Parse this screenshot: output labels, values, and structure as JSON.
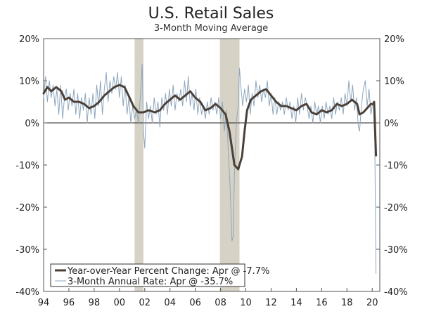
{
  "chart_data": {
    "type": "line",
    "title": "U.S. Retail Sales",
    "subtitle": "3-Month Moving Average",
    "x_range": [
      1994,
      2020.6
    ],
    "ylim": [
      -40,
      20
    ],
    "y_ticks": [
      20,
      10,
      0,
      -10,
      -20,
      -30,
      -40
    ],
    "y_tick_labels_left": [
      "20%",
      "10%",
      "0%",
      "-10%",
      "-20%",
      "-30%",
      "-40%"
    ],
    "y_tick_labels_right": [
      "20%",
      "10%",
      "0%",
      "-10%",
      "-20%",
      "-30%",
      "-40%"
    ],
    "x_ticks": [
      1994,
      1996,
      1998,
      2000,
      2002,
      2004,
      2006,
      2008,
      2010,
      2012,
      2014,
      2016,
      2018,
      2020
    ],
    "x_tick_labels": [
      "94",
      "96",
      "98",
      "00",
      "02",
      "04",
      "06",
      "08",
      "10",
      "12",
      "14",
      "16",
      "18",
      "20"
    ],
    "recessions": [
      {
        "start": 2001.2,
        "end": 2001.9
      },
      {
        "start": 2007.95,
        "end": 2009.5
      }
    ],
    "series": [
      {
        "name": "Year-over-Year Percent Change: Apr @ -7.7%",
        "color": "#4a4038",
        "style": "thick",
        "points": [
          [
            1994.0,
            7.0
          ],
          [
            1994.3,
            8.5
          ],
          [
            1994.6,
            7.5
          ],
          [
            1995.0,
            8.5
          ],
          [
            1995.4,
            7.5
          ],
          [
            1995.7,
            5.5
          ],
          [
            1996.0,
            6.0
          ],
          [
            1996.4,
            5.0
          ],
          [
            1996.8,
            5.0
          ],
          [
            1997.2,
            4.5
          ],
          [
            1997.6,
            3.5
          ],
          [
            1998.0,
            4.0
          ],
          [
            1998.4,
            5.0
          ],
          [
            1998.8,
            6.5
          ],
          [
            1999.2,
            7.5
          ],
          [
            1999.6,
            8.5
          ],
          [
            2000.0,
            9.0
          ],
          [
            2000.4,
            8.5
          ],
          [
            2000.8,
            6.0
          ],
          [
            2001.1,
            4.0
          ],
          [
            2001.5,
            2.5
          ],
          [
            2001.9,
            2.5
          ],
          [
            2002.3,
            3.0
          ],
          [
            2002.8,
            2.5
          ],
          [
            2003.2,
            3.0
          ],
          [
            2003.6,
            4.5
          ],
          [
            2004.0,
            5.5
          ],
          [
            2004.4,
            6.5
          ],
          [
            2004.8,
            5.5
          ],
          [
            2005.2,
            6.5
          ],
          [
            2005.6,
            7.5
          ],
          [
            2006.0,
            6.0
          ],
          [
            2006.4,
            5.0
          ],
          [
            2006.8,
            3.0
          ],
          [
            2007.2,
            3.5
          ],
          [
            2007.6,
            4.5
          ],
          [
            2008.0,
            3.5
          ],
          [
            2008.4,
            2.0
          ],
          [
            2008.7,
            -2.0
          ],
          [
            2008.9,
            -6.0
          ],
          [
            2009.1,
            -10.0
          ],
          [
            2009.4,
            -11.0
          ],
          [
            2009.7,
            -8.0
          ],
          [
            2009.9,
            -2.0
          ],
          [
            2010.1,
            3.0
          ],
          [
            2010.4,
            5.5
          ],
          [
            2010.8,
            6.5
          ],
          [
            2011.2,
            7.5
          ],
          [
            2011.6,
            8.0
          ],
          [
            2012.0,
            6.5
          ],
          [
            2012.4,
            5.0
          ],
          [
            2012.8,
            4.0
          ],
          [
            2013.2,
            4.0
          ],
          [
            2013.6,
            3.5
          ],
          [
            2014.0,
            3.0
          ],
          [
            2014.4,
            4.0
          ],
          [
            2014.8,
            4.5
          ],
          [
            2015.2,
            2.5
          ],
          [
            2015.6,
            2.0
          ],
          [
            2016.0,
            3.0
          ],
          [
            2016.4,
            2.5
          ],
          [
            2016.8,
            3.0
          ],
          [
            2017.2,
            4.5
          ],
          [
            2017.6,
            4.0
          ],
          [
            2018.0,
            4.5
          ],
          [
            2018.4,
            5.5
          ],
          [
            2018.8,
            4.5
          ],
          [
            2019.0,
            2.0
          ],
          [
            2019.3,
            2.5
          ],
          [
            2019.6,
            3.5
          ],
          [
            2019.9,
            4.5
          ],
          [
            2020.1,
            4.5
          ],
          [
            2020.15,
            5.0
          ],
          [
            2020.3,
            -7.7
          ]
        ]
      },
      {
        "name": "3-Month Annual Rate: Apr @ -35.7%",
        "color": "#8ea6bd",
        "style": "thin",
        "points": [
          [
            1994.0,
            6.0
          ],
          [
            1994.15,
            11.0
          ],
          [
            1994.3,
            5.0
          ],
          [
            1994.45,
            10.0
          ],
          [
            1994.6,
            6.0
          ],
          [
            1994.75,
            9.0
          ],
          [
            1994.9,
            4.0
          ],
          [
            1995.05,
            8.0
          ],
          [
            1995.2,
            2.0
          ],
          [
            1995.35,
            9.0
          ],
          [
            1995.5,
            1.0
          ],
          [
            1995.65,
            6.0
          ],
          [
            1995.8,
            8.0
          ],
          [
            1995.95,
            3.0
          ],
          [
            1996.1,
            7.0
          ],
          [
            1996.25,
            4.0
          ],
          [
            1996.4,
            8.0
          ],
          [
            1996.55,
            2.0
          ],
          [
            1996.7,
            7.0
          ],
          [
            1996.85,
            1.0
          ],
          [
            1997.0,
            6.0
          ],
          [
            1997.15,
            3.0
          ],
          [
            1997.3,
            7.0
          ],
          [
            1997.45,
            0.0
          ],
          [
            1997.6,
            6.0
          ],
          [
            1997.75,
            2.0
          ],
          [
            1997.9,
            7.0
          ],
          [
            1998.05,
            1.0
          ],
          [
            1998.2,
            9.0
          ],
          [
            1998.35,
            4.0
          ],
          [
            1998.5,
            10.0
          ],
          [
            1998.65,
            2.0
          ],
          [
            1998.8,
            8.0
          ],
          [
            1998.95,
            12.0
          ],
          [
            1999.1,
            5.0
          ],
          [
            1999.25,
            10.0
          ],
          [
            1999.4,
            7.0
          ],
          [
            1999.55,
            11.0
          ],
          [
            1999.7,
            8.0
          ],
          [
            1999.85,
            12.0
          ],
          [
            2000.0,
            6.0
          ],
          [
            2000.15,
            11.0
          ],
          [
            2000.3,
            4.0
          ],
          [
            2000.45,
            9.0
          ],
          [
            2000.6,
            2.0
          ],
          [
            2000.75,
            6.0
          ],
          [
            2000.9,
            0.0
          ],
          [
            2001.05,
            4.0
          ],
          [
            2001.2,
            1.0
          ],
          [
            2001.35,
            3.0
          ],
          [
            2001.5,
            0.0
          ],
          [
            2001.65,
            6.0
          ],
          [
            2001.8,
            14.0
          ],
          [
            2001.9,
            -2.0
          ],
          [
            2002.0,
            -6.0
          ],
          [
            2002.15,
            5.0
          ],
          [
            2002.3,
            1.0
          ],
          [
            2002.45,
            4.0
          ],
          [
            2002.6,
            0.0
          ],
          [
            2002.75,
            6.0
          ],
          [
            2002.9,
            2.0
          ],
          [
            2003.05,
            5.0
          ],
          [
            2003.2,
            -1.0
          ],
          [
            2003.35,
            6.0
          ],
          [
            2003.5,
            3.0
          ],
          [
            2003.65,
            7.0
          ],
          [
            2003.8,
            2.0
          ],
          [
            2003.95,
            8.0
          ],
          [
            2004.1,
            4.0
          ],
          [
            2004.25,
            9.0
          ],
          [
            2004.4,
            3.0
          ],
          [
            2004.55,
            7.0
          ],
          [
            2004.7,
            5.0
          ],
          [
            2004.85,
            8.0
          ],
          [
            2005.0,
            4.0
          ],
          [
            2005.15,
            10.0
          ],
          [
            2005.3,
            5.0
          ],
          [
            2005.45,
            11.0
          ],
          [
            2005.6,
            4.0
          ],
          [
            2005.75,
            7.0
          ],
          [
            2005.9,
            3.0
          ],
          [
            2006.05,
            8.0
          ],
          [
            2006.2,
            2.0
          ],
          [
            2006.35,
            6.0
          ],
          [
            2006.5,
            2.0
          ],
          [
            2006.65,
            4.0
          ],
          [
            2006.8,
            1.0
          ],
          [
            2006.95,
            5.0
          ],
          [
            2007.1,
            2.0
          ],
          [
            2007.25,
            6.0
          ],
          [
            2007.4,
            3.0
          ],
          [
            2007.55,
            5.0
          ],
          [
            2007.7,
            2.0
          ],
          [
            2007.85,
            6.0
          ],
          [
            2008.0,
            1.0
          ],
          [
            2008.15,
            5.0
          ],
          [
            2008.3,
            -2.0
          ],
          [
            2008.45,
            3.0
          ],
          [
            2008.6,
            -6.0
          ],
          [
            2008.75,
            -15.0
          ],
          [
            2008.9,
            -28.0
          ],
          [
            2009.0,
            -27.0
          ],
          [
            2009.1,
            -12.0
          ],
          [
            2009.25,
            0.0
          ],
          [
            2009.4,
            4.0
          ],
          [
            2009.5,
            13.0
          ],
          [
            2009.6,
            9.0
          ],
          [
            2009.75,
            4.0
          ],
          [
            2009.9,
            8.0
          ],
          [
            2010.05,
            5.0
          ],
          [
            2010.2,
            9.0
          ],
          [
            2010.35,
            2.0
          ],
          [
            2010.5,
            7.0
          ],
          [
            2010.65,
            4.0
          ],
          [
            2010.8,
            10.0
          ],
          [
            2010.95,
            6.0
          ],
          [
            2011.1,
            9.0
          ],
          [
            2011.25,
            5.0
          ],
          [
            2011.4,
            8.0
          ],
          [
            2011.55,
            6.0
          ],
          [
            2011.7,
            10.0
          ],
          [
            2011.85,
            4.0
          ],
          [
            2012.0,
            7.0
          ],
          [
            2012.15,
            2.0
          ],
          [
            2012.3,
            6.0
          ],
          [
            2012.45,
            2.0
          ],
          [
            2012.6,
            5.0
          ],
          [
            2012.75,
            3.0
          ],
          [
            2012.9,
            5.0
          ],
          [
            2013.05,
            2.0
          ],
          [
            2013.2,
            6.0
          ],
          [
            2013.35,
            3.0
          ],
          [
            2013.5,
            5.0
          ],
          [
            2013.65,
            1.0
          ],
          [
            2013.8,
            4.0
          ],
          [
            2013.95,
            0.0
          ],
          [
            2014.1,
            6.0
          ],
          [
            2014.25,
            2.0
          ],
          [
            2014.4,
            7.0
          ],
          [
            2014.55,
            3.0
          ],
          [
            2014.7,
            6.0
          ],
          [
            2014.85,
            4.0
          ],
          [
            2015.0,
            1.0
          ],
          [
            2015.15,
            4.0
          ],
          [
            2015.3,
            0.0
          ],
          [
            2015.45,
            5.0
          ],
          [
            2015.6,
            2.0
          ],
          [
            2015.75,
            4.0
          ],
          [
            2015.9,
            0.0
          ],
          [
            2016.05,
            4.0
          ],
          [
            2016.2,
            1.0
          ],
          [
            2016.35,
            5.0
          ],
          [
            2016.5,
            2.0
          ],
          [
            2016.65,
            4.0
          ],
          [
            2016.8,
            1.0
          ],
          [
            2016.95,
            6.0
          ],
          [
            2017.1,
            2.0
          ],
          [
            2017.25,
            5.0
          ],
          [
            2017.4,
            3.0
          ],
          [
            2017.55,
            6.0
          ],
          [
            2017.7,
            2.0
          ],
          [
            2017.85,
            7.0
          ],
          [
            2018.0,
            4.0
          ],
          [
            2018.15,
            10.0
          ],
          [
            2018.3,
            5.0
          ],
          [
            2018.45,
            9.0
          ],
          [
            2018.6,
            3.0
          ],
          [
            2018.75,
            6.0
          ],
          [
            2018.9,
            -1.0
          ],
          [
            2019.0,
            -2.0
          ],
          [
            2019.15,
            4.0
          ],
          [
            2019.3,
            8.0
          ],
          [
            2019.45,
            10.0
          ],
          [
            2019.6,
            4.0
          ],
          [
            2019.75,
            8.0
          ],
          [
            2019.9,
            2.0
          ],
          [
            2020.0,
            4.0
          ],
          [
            2020.1,
            5.0
          ],
          [
            2020.15,
            0.0
          ],
          [
            2020.2,
            -3.0
          ],
          [
            2020.3,
            -35.7
          ]
        ]
      }
    ],
    "legend_position": "bottom-left"
  }
}
